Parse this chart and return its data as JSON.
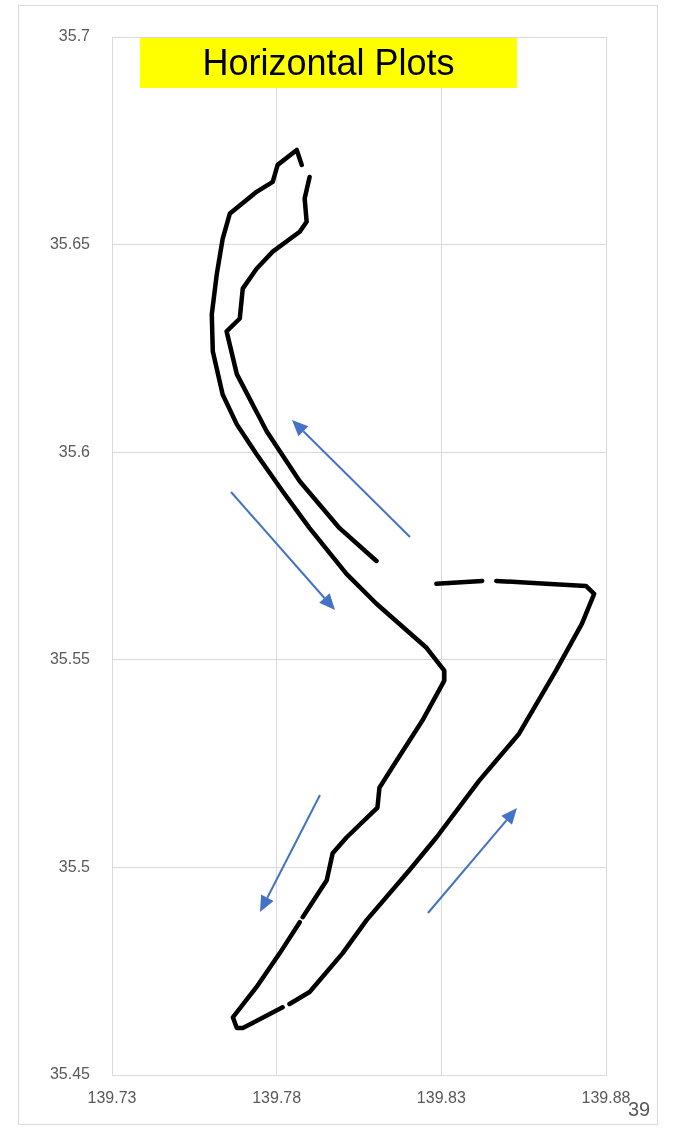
{
  "chart_data": {
    "type": "line",
    "title": "Horizontal Plots",
    "series": [
      {
        "color": "#000000",
        "x": [
          139.7876,
          139.7861,
          139.7803,
          139.7788,
          139.7739,
          139.7658,
          139.7636,
          139.7618,
          139.7603,
          139.7606,
          139.7636,
          139.7679,
          139.7739,
          139.7818,
          139.79,
          139.8012,
          139.8103,
          139.8255,
          139.8309,
          139.8309,
          139.8242,
          139.8164,
          139.8112,
          139.8106,
          139.8012,
          139.797,
          139.7952,
          139.7879,
          null,
          139.787,
          139.7809,
          139.7739,
          139.7667,
          139.7679,
          139.7697,
          139.7818,
          null,
          139.7839,
          139.79,
          139.8,
          139.8073,
          139.8203,
          139.8285,
          139.8415,
          139.8536,
          139.8648,
          139.8727,
          139.8764,
          139.8739,
          139.8618,
          139.8467,
          null,
          139.8424,
          139.8285,
          null,
          139.8103,
          139.7991,
          139.787,
          139.777,
          139.7679,
          139.7648,
          139.7688,
          139.7697,
          139.7739,
          139.7788,
          139.787,
          139.7891,
          139.7885,
          139.79
        ],
        "values": [
          35.6692,
          35.6728,
          35.6692,
          35.6651,
          35.6627,
          35.6575,
          35.6514,
          35.6428,
          35.6332,
          35.6243,
          35.6139,
          35.6067,
          35.5995,
          35.5906,
          35.5817,
          35.5707,
          35.5635,
          35.5529,
          35.5474,
          35.545,
          35.5353,
          35.5257,
          35.5192,
          35.5144,
          35.5072,
          35.5034,
          35.4969,
          35.488,
          null,
          35.4868,
          35.4793,
          35.4712,
          35.4639,
          35.4613,
          35.4613,
          35.4663,
          null,
          35.4671,
          35.47,
          35.4793,
          35.4873,
          35.4993,
          35.5072,
          35.5209,
          35.5322,
          35.5474,
          35.5587,
          35.5659,
          35.5678,
          35.5683,
          35.569,
          null,
          35.569,
          35.5683,
          null,
          35.5738,
          35.5817,
          35.593,
          35.605,
          35.6188,
          35.6291,
          35.6322,
          35.6394,
          35.6442,
          35.6483,
          35.6531,
          35.6555,
          35.6611,
          35.6663
        ]
      }
    ],
    "xlim": [
      139.73,
      139.88
    ],
    "xticks": [
      139.73,
      139.78,
      139.83,
      139.88
    ],
    "ylim": [
      35.45,
      35.7
    ],
    "yticks": [
      35.45,
      35.5,
      35.55,
      35.6,
      35.65,
      35.7
    ],
    "grid": true,
    "legend": false,
    "marker": "none",
    "line_style": "solid",
    "annotations": [
      "39"
    ]
  }
}
